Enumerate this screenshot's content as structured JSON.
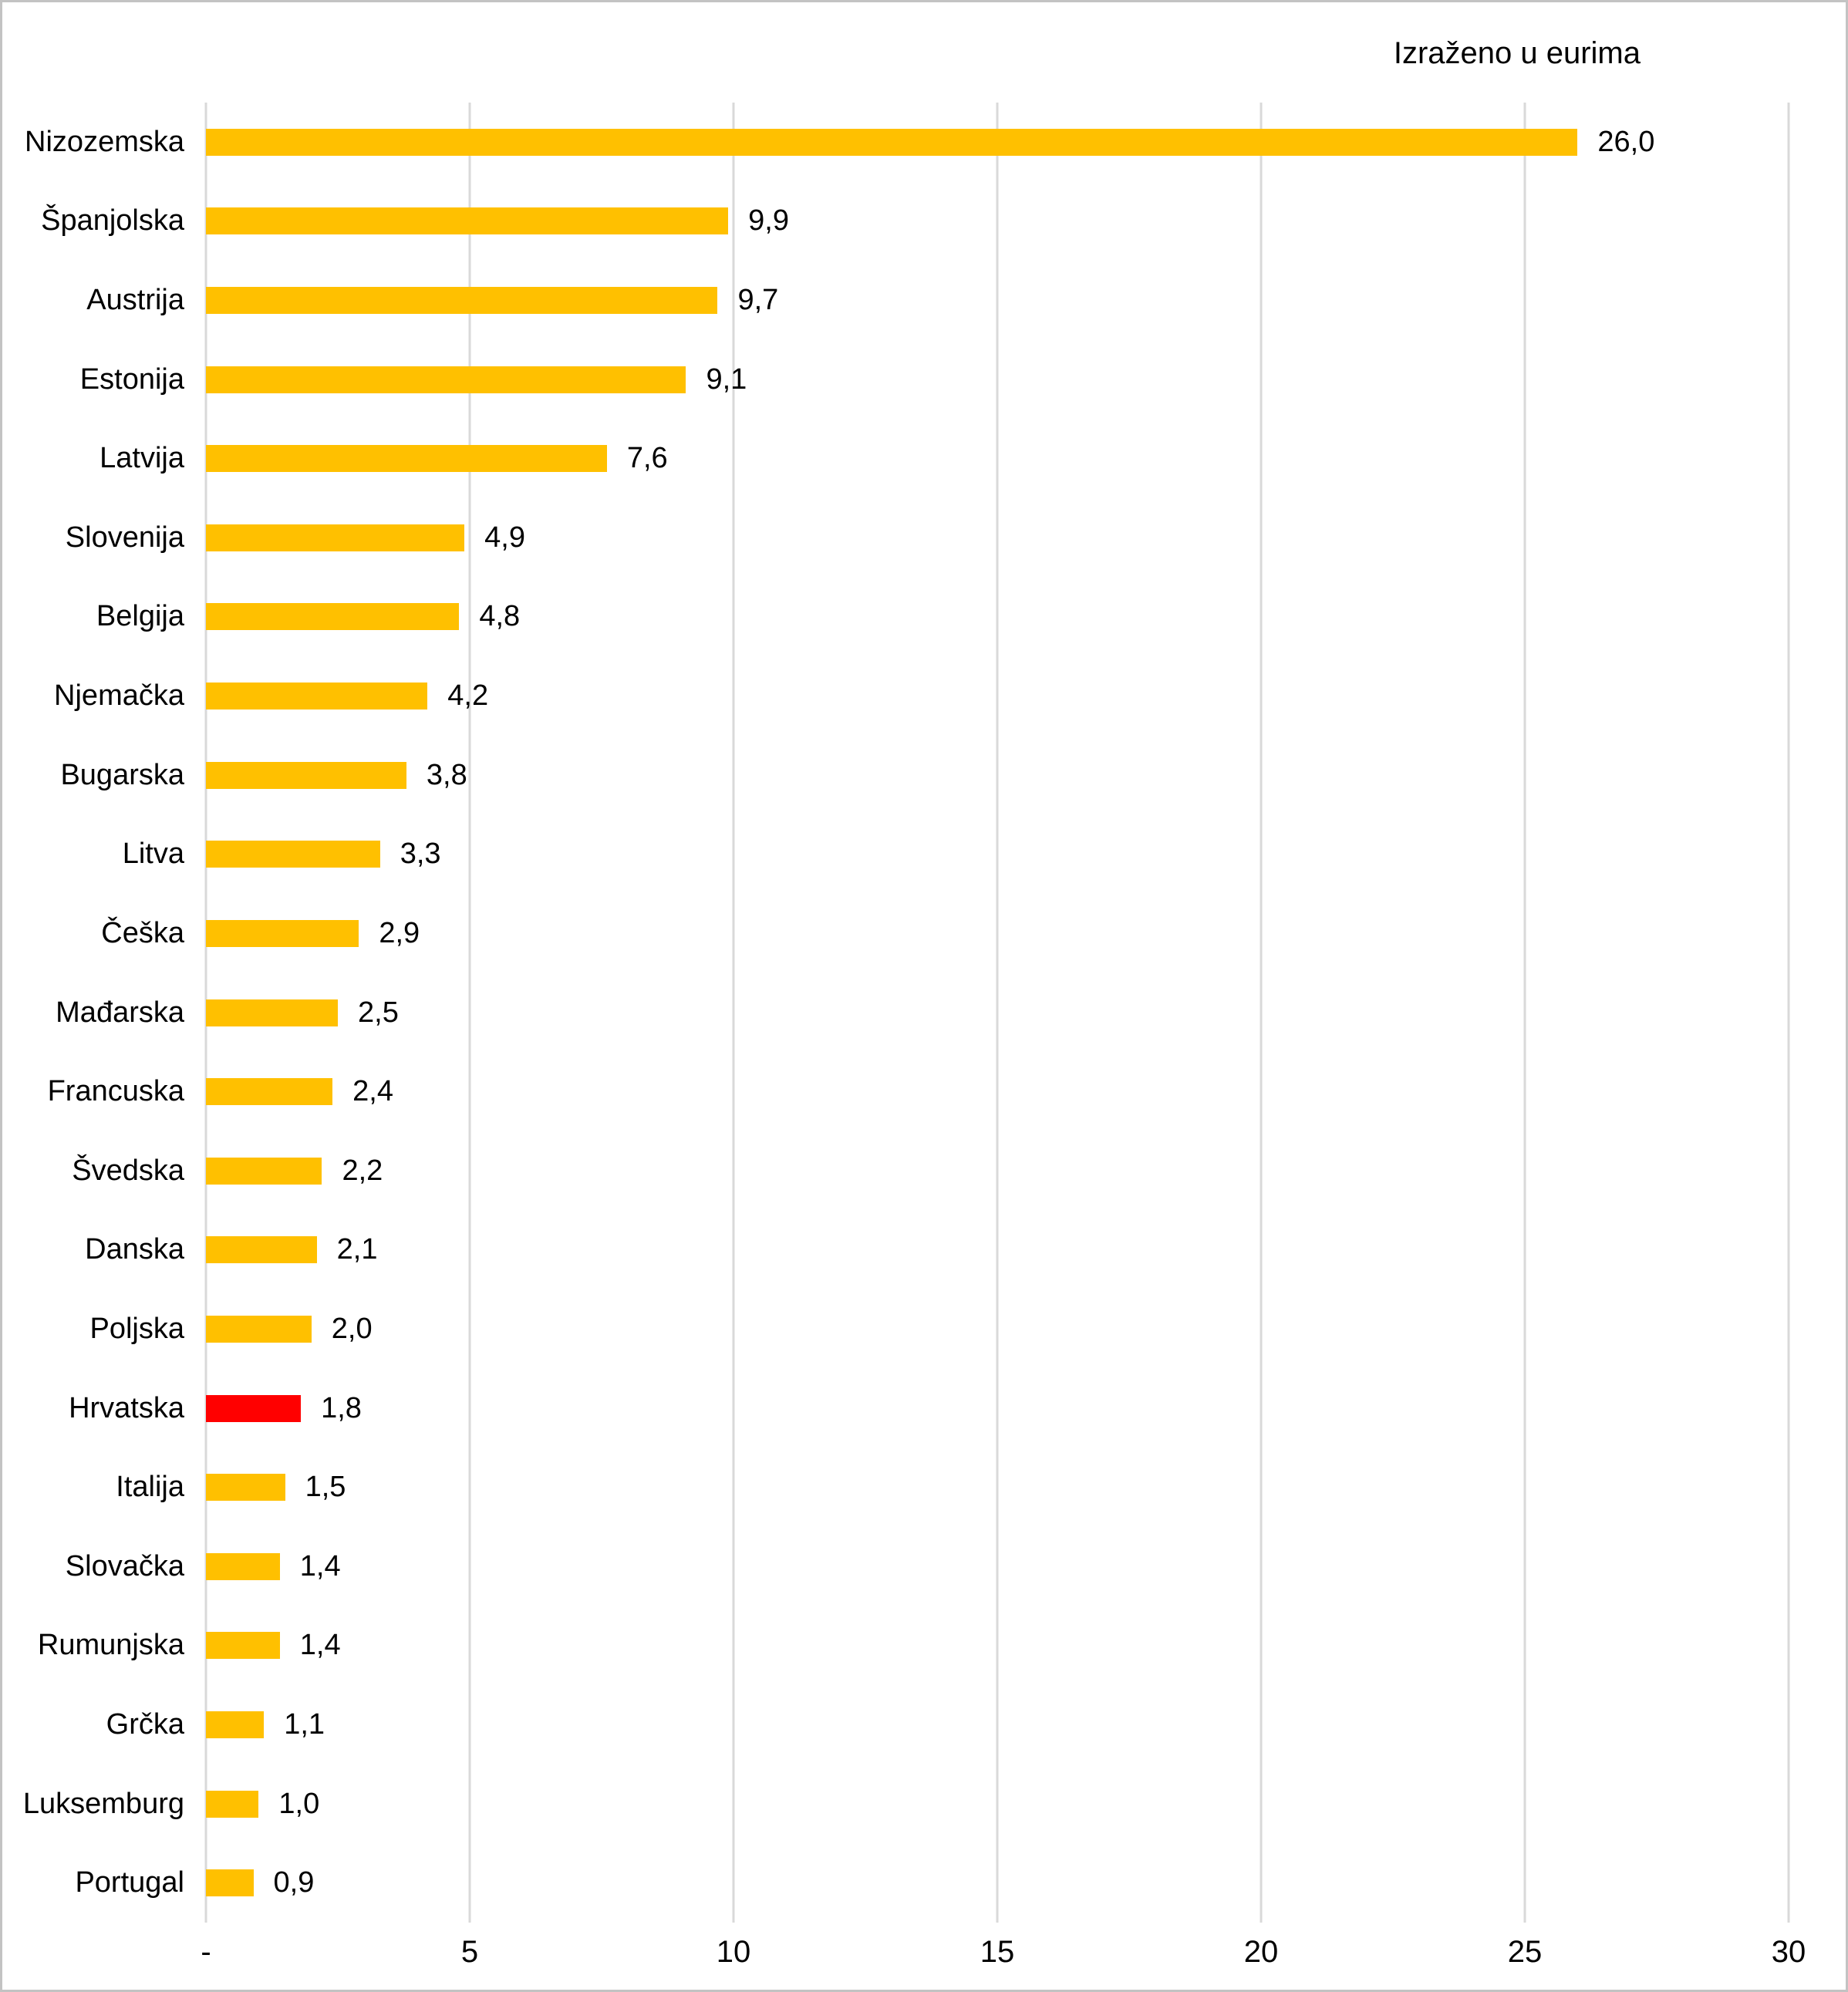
{
  "title": "Izraženo u eurima",
  "colors": {
    "bar": "#FFC000",
    "highlight": "#FF0000",
    "grid": "#D9D9D9",
    "border": "#C3C3C3",
    "text": "#000000"
  },
  "chart_data": {
    "type": "bar",
    "orientation": "horizontal",
    "title": "Izraženo u eurima",
    "categories": [
      "Nizozemska",
      "Španjolska",
      "Austrija",
      "Estonija",
      "Latvija",
      "Slovenija",
      "Belgija",
      "Njemačka",
      "Bugarska",
      "Litva",
      "Češka",
      "Mađarska",
      "Francuska",
      "Švedska",
      "Danska",
      "Poljska",
      "Hrvatska",
      "Italija",
      "Slovačka",
      "Rumunjska",
      "Grčka",
      "Luksemburg",
      "Portugal"
    ],
    "values": [
      26.0,
      9.9,
      9.7,
      9.1,
      7.6,
      4.9,
      4.8,
      4.2,
      3.8,
      3.3,
      2.9,
      2.5,
      2.4,
      2.2,
      2.1,
      2.0,
      1.8,
      1.5,
      1.4,
      1.4,
      1.1,
      1.0,
      0.9
    ],
    "value_labels": [
      "26,0",
      "9,9",
      "9,7",
      "9,1",
      "7,6",
      "4,9",
      "4,8",
      "4,2",
      "3,8",
      "3,3",
      "2,9",
      "2,5",
      "2,4",
      "2,2",
      "2,1",
      "2,0",
      "1,8",
      "1,5",
      "1,4",
      "1,4",
      "1,1",
      "1,0",
      "0,9"
    ],
    "highlight_category": "Hrvatska",
    "xlabel": "",
    "ylabel": "",
    "xlim": [
      0,
      30
    ],
    "x_ticks": [
      {
        "label": "-",
        "value": 0
      },
      {
        "label": "5",
        "value": 5
      },
      {
        "label": "10",
        "value": 10
      },
      {
        "label": "15",
        "value": 15
      },
      {
        "label": "20",
        "value": 20
      },
      {
        "label": "25",
        "value": 25
      },
      {
        "label": "30",
        "value": 30
      }
    ],
    "grid": true,
    "legend_position": "none"
  }
}
